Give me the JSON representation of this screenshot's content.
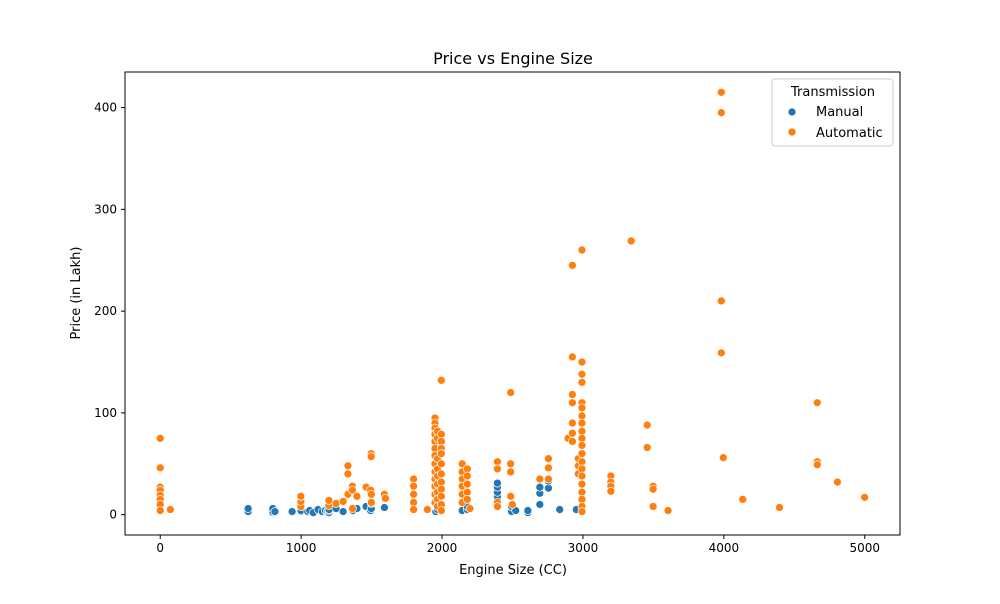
{
  "chart_data": {
    "type": "scatter",
    "title": "Price vs Engine Size",
    "xlabel": "Engine Size (CC)",
    "ylabel": "Price (in Lakh)",
    "xlim": [
      -250,
      5250
    ],
    "ylim": [
      -20,
      435
    ],
    "xticks": [
      0,
      1000,
      2000,
      3000,
      4000,
      5000
    ],
    "yticks": [
      0,
      100,
      200,
      300,
      400
    ],
    "grid": false,
    "legend": {
      "title": "Transmission",
      "placement": "top-right"
    },
    "series": [
      {
        "name": "Manual",
        "color": "#1f77b4",
        "points": [
          [
            624,
            3
          ],
          [
            624,
            6
          ],
          [
            796,
            2
          ],
          [
            796,
            4
          ],
          [
            799,
            3
          ],
          [
            799,
            6
          ],
          [
            814,
            3
          ],
          [
            936,
            3
          ],
          [
            998,
            3
          ],
          [
            998,
            5
          ],
          [
            999,
            4
          ],
          [
            1047,
            3
          ],
          [
            1061,
            4
          ],
          [
            1086,
            2
          ],
          [
            1120,
            5
          ],
          [
            1150,
            3
          ],
          [
            1172,
            4
          ],
          [
            1186,
            3
          ],
          [
            1197,
            2
          ],
          [
            1197,
            4
          ],
          [
            1197,
            6
          ],
          [
            1199,
            5
          ],
          [
            1248,
            6
          ],
          [
            1298,
            3
          ],
          [
            1364,
            5
          ],
          [
            1368,
            4
          ],
          [
            1396,
            6
          ],
          [
            1461,
            8
          ],
          [
            1493,
            4
          ],
          [
            1498,
            6
          ],
          [
            1498,
            11
          ],
          [
            1591,
            7
          ],
          [
            1956,
            3
          ],
          [
            1968,
            5
          ],
          [
            2143,
            4
          ],
          [
            2179,
            5
          ],
          [
            2179,
            8
          ],
          [
            2393,
            15
          ],
          [
            2393,
            18
          ],
          [
            2393,
            22
          ],
          [
            2393,
            27
          ],
          [
            2393,
            31
          ],
          [
            2494,
            3
          ],
          [
            2494,
            8
          ],
          [
            2523,
            4
          ],
          [
            2609,
            2
          ],
          [
            2609,
            4
          ],
          [
            2694,
            10
          ],
          [
            2694,
            21
          ],
          [
            2694,
            27
          ],
          [
            2755,
            26
          ],
          [
            2755,
            33
          ],
          [
            2835,
            5
          ],
          [
            2953,
            5
          ]
        ]
      },
      {
        "name": "Automatic",
        "color": "#ff7f0e",
        "points": [
          [
            0,
            75
          ],
          [
            0,
            46
          ],
          [
            0,
            27
          ],
          [
            0,
            24
          ],
          [
            0,
            19
          ],
          [
            0,
            15
          ],
          [
            0,
            10
          ],
          [
            0,
            4
          ],
          [
            72,
            5
          ],
          [
            998,
            8
          ],
          [
            998,
            13
          ],
          [
            998,
            18
          ],
          [
            1197,
            9
          ],
          [
            1197,
            14
          ],
          [
            1248,
            11
          ],
          [
            1298,
            13
          ],
          [
            1332,
            48
          ],
          [
            1332,
            40
          ],
          [
            1332,
            20
          ],
          [
            1364,
            28
          ],
          [
            1364,
            24
          ],
          [
            1364,
            6
          ],
          [
            1396,
            18
          ],
          [
            1461,
            27
          ],
          [
            1493,
            24
          ],
          [
            1497,
            60
          ],
          [
            1497,
            57
          ],
          [
            1498,
            20
          ],
          [
            1498,
            12
          ],
          [
            1591,
            20
          ],
          [
            1598,
            16
          ],
          [
            1798,
            35
          ],
          [
            1798,
            28
          ],
          [
            1798,
            20
          ],
          [
            1798,
            12
          ],
          [
            1798,
            5
          ],
          [
            1896,
            5
          ],
          [
            1950,
            95
          ],
          [
            1950,
            90
          ],
          [
            1950,
            85
          ],
          [
            1950,
            79
          ],
          [
            1950,
            72
          ],
          [
            1950,
            65
          ],
          [
            1950,
            58
          ],
          [
            1950,
            50
          ],
          [
            1950,
            42
          ],
          [
            1950,
            35
          ],
          [
            1950,
            28
          ],
          [
            1950,
            20
          ],
          [
            1950,
            12
          ],
          [
            1968,
            82
          ],
          [
            1968,
            75
          ],
          [
            1968,
            55
          ],
          [
            1968,
            45
          ],
          [
            1968,
            38
          ],
          [
            1968,
            30
          ],
          [
            1968,
            22
          ],
          [
            1968,
            15
          ],
          [
            1968,
            8
          ],
          [
            1995,
            132
          ],
          [
            1995,
            79
          ],
          [
            1995,
            72
          ],
          [
            1995,
            65
          ],
          [
            1995,
            60
          ],
          [
            1995,
            50
          ],
          [
            1995,
            40
          ],
          [
            1995,
            32
          ],
          [
            1995,
            25
          ],
          [
            1995,
            18
          ],
          [
            1995,
            10
          ],
          [
            1995,
            4
          ],
          [
            2143,
            50
          ],
          [
            2143,
            42
          ],
          [
            2143,
            35
          ],
          [
            2143,
            28
          ],
          [
            2143,
            20
          ],
          [
            2143,
            12
          ],
          [
            2179,
            45
          ],
          [
            2179,
            38
          ],
          [
            2179,
            30
          ],
          [
            2179,
            22
          ],
          [
            2179,
            15
          ],
          [
            2198,
            6
          ],
          [
            2393,
            52
          ],
          [
            2393,
            45
          ],
          [
            2393,
            12
          ],
          [
            2393,
            8
          ],
          [
            2487,
            120
          ],
          [
            2487,
            50
          ],
          [
            2487,
            42
          ],
          [
            2487,
            18
          ],
          [
            2499,
            10
          ],
          [
            2694,
            35
          ],
          [
            2755,
            55
          ],
          [
            2755,
            46
          ],
          [
            2755,
            35
          ],
          [
            2894,
            75
          ],
          [
            2925,
            245
          ],
          [
            2925,
            155
          ],
          [
            2925,
            118
          ],
          [
            2925,
            110
          ],
          [
            2925,
            90
          ],
          [
            2925,
            80
          ],
          [
            2925,
            72
          ],
          [
            2967,
            55
          ],
          [
            2967,
            48
          ],
          [
            2967,
            40
          ],
          [
            2993,
            260
          ],
          [
            2993,
            150
          ],
          [
            2993,
            138
          ],
          [
            2993,
            130
          ],
          [
            2993,
            110
          ],
          [
            2993,
            105
          ],
          [
            2993,
            97
          ],
          [
            2993,
            90
          ],
          [
            2993,
            82
          ],
          [
            2993,
            75
          ],
          [
            2993,
            68
          ],
          [
            2993,
            60
          ],
          [
            2993,
            52
          ],
          [
            2993,
            45
          ],
          [
            2993,
            38
          ],
          [
            2993,
            30
          ],
          [
            2993,
            22
          ],
          [
            2993,
            15
          ],
          [
            2993,
            8
          ],
          [
            2993,
            3
          ],
          [
            3198,
            38
          ],
          [
            3198,
            32
          ],
          [
            3198,
            28
          ],
          [
            3198,
            23
          ],
          [
            3342,
            269
          ],
          [
            3456,
            88
          ],
          [
            3456,
            66
          ],
          [
            3498,
            28
          ],
          [
            3498,
            25
          ],
          [
            3498,
            8
          ],
          [
            3604,
            4
          ],
          [
            3982,
            415
          ],
          [
            3982,
            395
          ],
          [
            3982,
            210
          ],
          [
            3982,
            159
          ],
          [
            3996,
            56
          ],
          [
            4134,
            15
          ],
          [
            4395,
            7
          ],
          [
            4663,
            110
          ],
          [
            4663,
            52
          ],
          [
            4663,
            49
          ],
          [
            4806,
            32
          ],
          [
            4999,
            17
          ]
        ]
      }
    ]
  }
}
